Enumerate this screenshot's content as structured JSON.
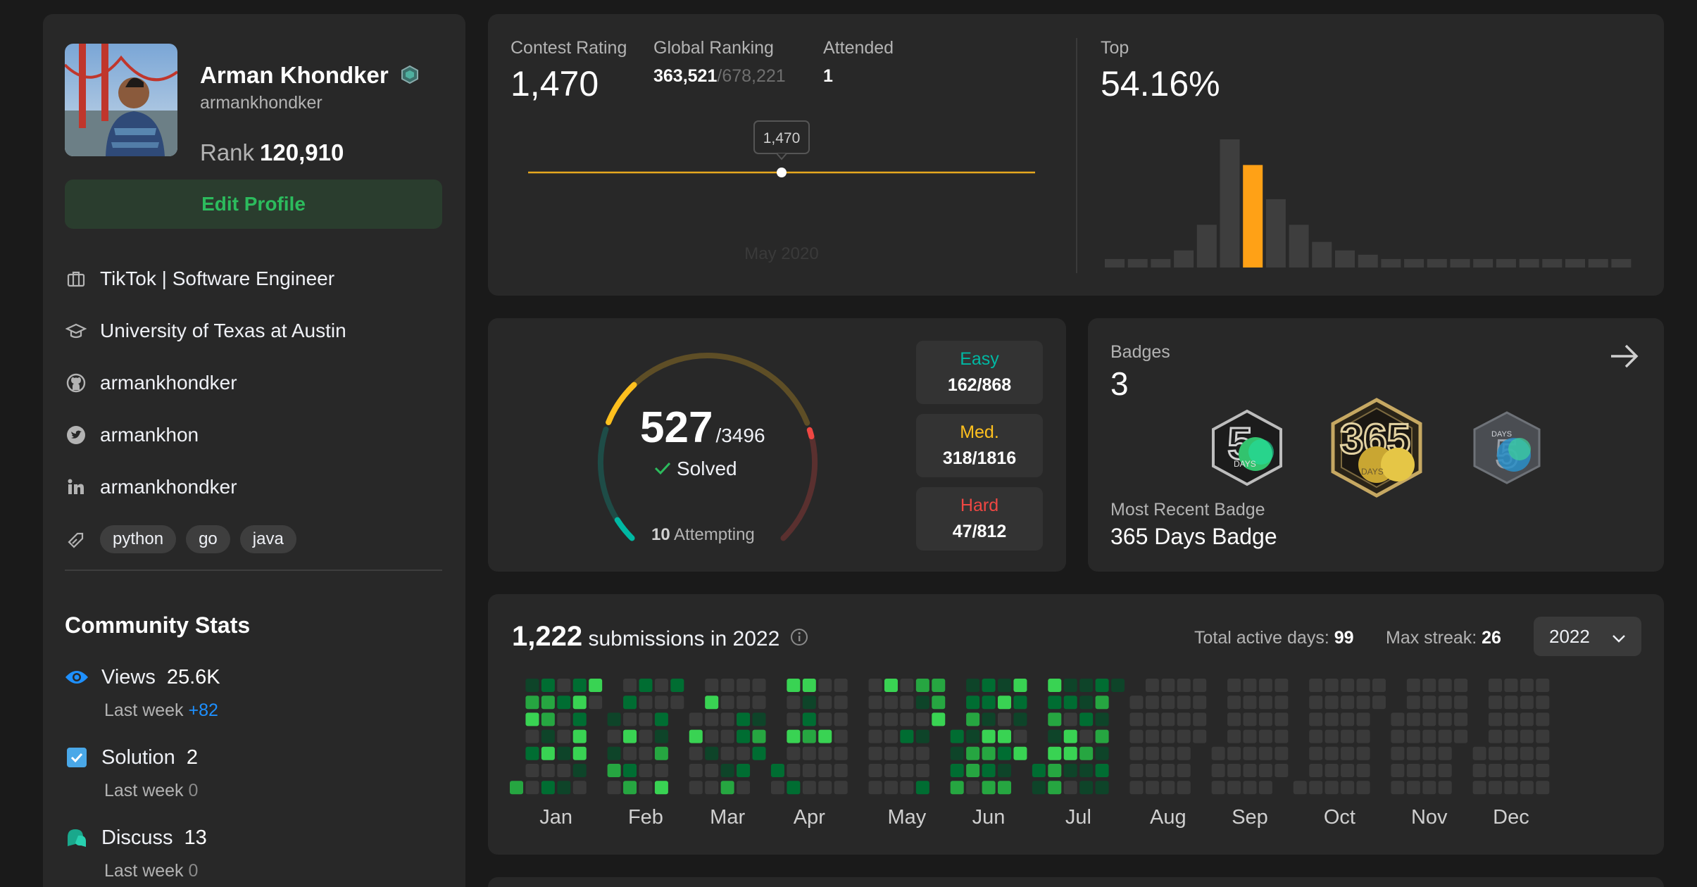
{
  "profile": {
    "name": "Arman Khondker",
    "username": "armankhondker",
    "rank_label": "Rank",
    "rank_value": "120,910",
    "edit_button": "Edit Profile",
    "work": "TikTok | Software Engineer",
    "school": "University of Texas at Austin",
    "github": "armankhondker",
    "twitter": "armankhon",
    "linkedin": "armankhondker",
    "skills": [
      "python",
      "go",
      "java"
    ]
  },
  "community": {
    "title": "Community Stats",
    "views_label": "Views",
    "views_value": "25.6K",
    "views_last_week_label": "Last week",
    "views_last_week": "+82",
    "solution_label": "Solution",
    "solution_value": "2",
    "solution_last_week_label": "Last week",
    "solution_last_week": "0",
    "discuss_label": "Discuss",
    "discuss_value": "13",
    "discuss_last_week_label": "Last week",
    "discuss_last_week": "0"
  },
  "contest": {
    "rating_label": "Contest Rating",
    "rating_value": "1,470",
    "ranking_label": "Global Ranking",
    "ranking_value": "363,521",
    "ranking_total": "/678,221",
    "attended_label": "Attended",
    "attended_value": "1",
    "tooltip": "1,470",
    "x_label": "May 2020",
    "top_label": "Top",
    "top_value": "54.16%",
    "histogram": [
      1,
      1,
      1,
      2,
      5,
      15,
      12,
      8,
      5,
      3,
      2,
      1.5,
      1,
      1,
      1,
      1,
      1,
      1,
      1,
      1,
      1,
      1,
      1
    ],
    "highlight_index": 6
  },
  "solved": {
    "count": "527",
    "total": "/3496",
    "solved_label": "Solved",
    "attempting_count": "10",
    "attempting_label": "Attempting",
    "easy_label": "Easy",
    "easy_value": "162/868",
    "med_label": "Med.",
    "med_value": "318/1816",
    "hard_label": "Hard",
    "hard_value": "47/812",
    "easy_solved": 162,
    "easy_total": 868,
    "med_solved": 318,
    "med_total": 1816,
    "hard_solved": 47,
    "hard_total": 812,
    "colors": {
      "easy": "#00b8a3",
      "med": "#ffc01e",
      "hard": "#ef4743"
    }
  },
  "badges": {
    "title": "Badges",
    "count": "3",
    "recent_label": "Most Recent Badge",
    "recent_name": "365 Days Badge",
    "badge_art": [
      {
        "icon": "50-days-badge-icon",
        "text": "DAYS"
      },
      {
        "icon": "365-days-badge-icon",
        "text": "DAYS"
      },
      {
        "icon": "5-days-badge-icon",
        "text": "DAYS"
      }
    ]
  },
  "submissions": {
    "count": "1,222",
    "label": "submissions in 2022",
    "active_label": "Total active days:",
    "active_value": "99",
    "streak_label": "Max streak:",
    "streak_value": "26",
    "year": "2022",
    "months": [
      "Jan",
      "Feb",
      "Mar",
      "Apr",
      "May",
      "Jun",
      "Jul",
      "Aug",
      "Sep",
      "Oct",
      "Nov",
      "Dec"
    ]
  }
}
